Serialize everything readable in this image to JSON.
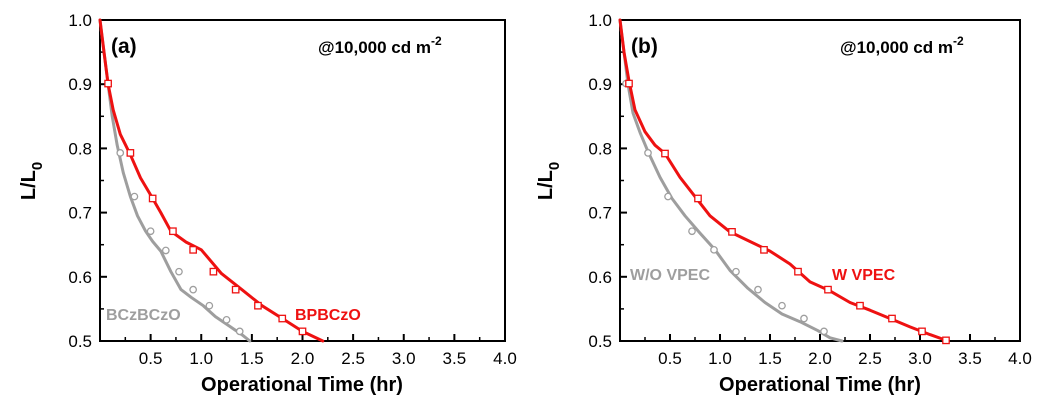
{
  "chart_data": [
    {
      "type": "line",
      "panel_label": "(a)",
      "annotation": {
        "prefix": "@10,000 cd m",
        "superscript": "-2"
      },
      "xlabel": "Operational Time (hr)",
      "ylabel": {
        "main": "L/L",
        "subscript": "0"
      },
      "xlim": [
        0,
        4.0
      ],
      "ylim": [
        0.5,
        1.0
      ],
      "xticks": [
        "0.5",
        "1.0",
        "1.5",
        "2.0",
        "2.5",
        "3.0",
        "3.5",
        "4.0"
      ],
      "yticks": [
        "0.5",
        "0.6",
        "0.7",
        "0.8",
        "0.9",
        "1.0"
      ],
      "grid": false,
      "series": [
        {
          "name": "BCzBCzO",
          "color": "#9e9e9e",
          "marker": "circle",
          "x": [
            0.0,
            0.04,
            0.08,
            0.12,
            0.17,
            0.23,
            0.3,
            0.37,
            0.45,
            0.52,
            0.6,
            0.7,
            0.8,
            0.9,
            1.02,
            1.14,
            1.28,
            1.4,
            1.48
          ],
          "y": [
            1.0,
            0.95,
            0.9,
            0.85,
            0.805,
            0.762,
            0.725,
            0.695,
            0.671,
            0.655,
            0.64,
            0.608,
            0.58,
            0.568,
            0.555,
            0.538,
            0.523,
            0.51,
            0.5
          ],
          "marker_x": [
            0.2,
            0.34,
            0.5,
            0.65,
            0.78,
            0.92,
            1.08,
            1.25,
            1.38
          ],
          "marker_y": [
            0.793,
            0.725,
            0.671,
            0.641,
            0.608,
            0.58,
            0.555,
            0.533,
            0.515
          ]
        },
        {
          "name": "BPBCzO",
          "color": "#ee1111",
          "marker": "square",
          "x": [
            0.0,
            0.04,
            0.08,
            0.13,
            0.2,
            0.3,
            0.4,
            0.52,
            0.6,
            0.7,
            0.85,
            1.0,
            1.2,
            1.4,
            1.6,
            1.8,
            2.0,
            2.2
          ],
          "y": [
            1.0,
            0.95,
            0.9,
            0.86,
            0.822,
            0.79,
            0.754,
            0.722,
            0.7,
            0.671,
            0.654,
            0.642,
            0.605,
            0.58,
            0.555,
            0.535,
            0.515,
            0.5
          ],
          "marker_x": [
            0.08,
            0.3,
            0.52,
            0.72,
            0.92,
            1.12,
            1.34,
            1.56,
            1.8,
            2.0
          ],
          "marker_y": [
            0.901,
            0.793,
            0.722,
            0.671,
            0.642,
            0.608,
            0.58,
            0.555,
            0.535,
            0.515
          ]
        }
      ]
    },
    {
      "type": "line",
      "panel_label": "(b)",
      "annotation": {
        "prefix": "@10,000 cd m",
        "superscript": "-2"
      },
      "xlabel": "Operational Time (hr)",
      "ylabel": {
        "main": "L/L",
        "subscript": "0"
      },
      "xlim": [
        0,
        4.0
      ],
      "ylim": [
        0.5,
        1.0
      ],
      "xticks": [
        "0.5",
        "1.0",
        "1.5",
        "2.0",
        "2.5",
        "3.0",
        "3.5",
        "4.0"
      ],
      "yticks": [
        "0.5",
        "0.6",
        "0.7",
        "0.8",
        "0.9",
        "1.0"
      ],
      "grid": false,
      "series": [
        {
          "name": "W/O VPEC",
          "color": "#9e9e9e",
          "marker": "circle",
          "x": [
            0.0,
            0.04,
            0.08,
            0.13,
            0.2,
            0.28,
            0.4,
            0.52,
            0.65,
            0.8,
            0.95,
            1.1,
            1.28,
            1.45,
            1.62,
            1.8,
            1.98,
            2.1,
            2.22
          ],
          "y": [
            1.0,
            0.95,
            0.9,
            0.855,
            0.825,
            0.795,
            0.755,
            0.722,
            0.695,
            0.668,
            0.642,
            0.61,
            0.582,
            0.56,
            0.542,
            0.53,
            0.516,
            0.505,
            0.5
          ],
          "marker_x": [
            0.06,
            0.28,
            0.48,
            0.72,
            0.94,
            1.16,
            1.38,
            1.62,
            1.84,
            2.04
          ],
          "marker_y": [
            0.901,
            0.793,
            0.725,
            0.671,
            0.642,
            0.608,
            0.58,
            0.555,
            0.535,
            0.515
          ]
        },
        {
          "name": "W VPEC",
          "color": "#ee1111",
          "marker": "square",
          "x": [
            0.0,
            0.04,
            0.09,
            0.15,
            0.25,
            0.35,
            0.45,
            0.6,
            0.75,
            0.9,
            1.1,
            1.3,
            1.5,
            1.7,
            1.9,
            2.1,
            2.3,
            2.5,
            2.7,
            2.9,
            3.1,
            3.28
          ],
          "y": [
            1.0,
            0.95,
            0.905,
            0.86,
            0.826,
            0.805,
            0.792,
            0.755,
            0.725,
            0.695,
            0.67,
            0.655,
            0.64,
            0.62,
            0.592,
            0.578,
            0.56,
            0.548,
            0.535,
            0.522,
            0.51,
            0.5
          ],
          "marker_x": [
            0.09,
            0.45,
            0.78,
            1.12,
            1.44,
            1.78,
            2.08,
            2.4,
            2.72,
            3.02,
            3.26
          ],
          "marker_y": [
            0.901,
            0.792,
            0.722,
            0.67,
            0.642,
            0.608,
            0.58,
            0.555,
            0.535,
            0.515,
            0.501
          ]
        }
      ]
    }
  ]
}
